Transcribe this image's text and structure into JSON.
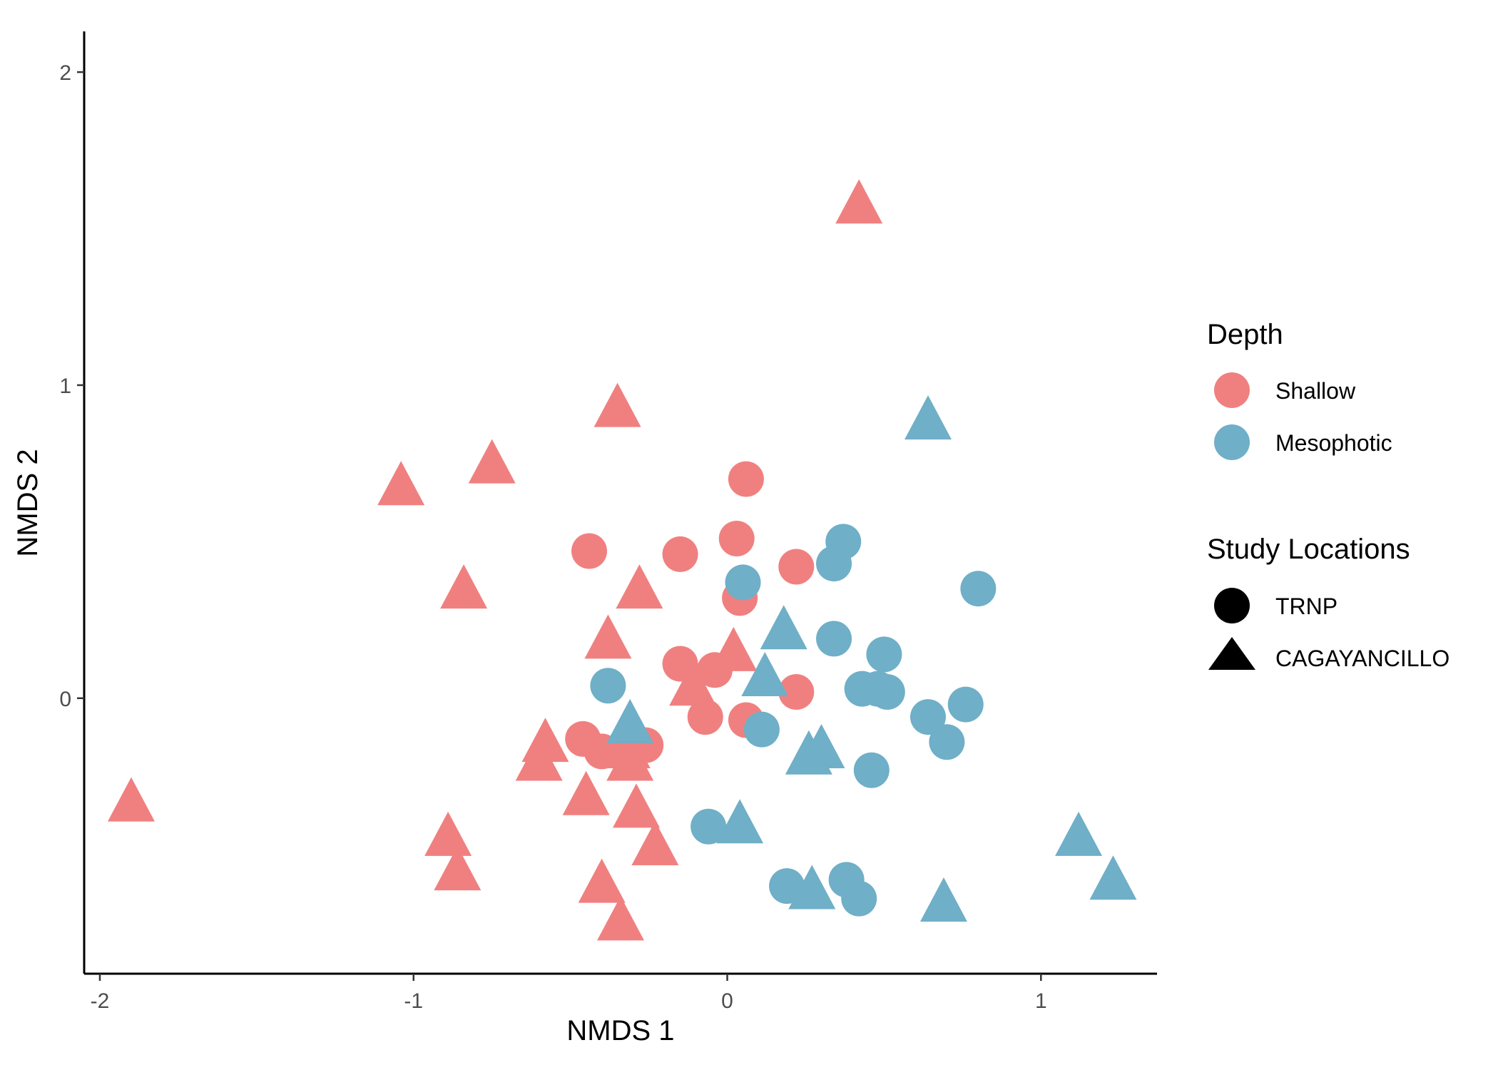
{
  "chart_data": {
    "type": "scatter",
    "title": "",
    "xlabel": "NMDS 1",
    "ylabel": "NMDS 2",
    "xlim": [
      -2.05,
      1.37
    ],
    "ylim": [
      -0.88,
      2.13
    ],
    "x_ticks": [
      -2,
      -1,
      0,
      1
    ],
    "x_tick_labels": [
      "-2",
      "-1",
      "0",
      "1"
    ],
    "y_ticks": [
      0,
      1,
      2
    ],
    "y_tick_labels": [
      "0",
      "1",
      "2"
    ],
    "grid": false,
    "legend_position": "right",
    "legends": [
      {
        "title": "Depth",
        "kind": "color",
        "entries": [
          {
            "label": "Shallow",
            "key": "Shallow",
            "color": "#F08080"
          },
          {
            "label": "Mesophotic",
            "key": "Mesophotic",
            "color": "#6FAFC7"
          }
        ]
      },
      {
        "title": "Study Locations",
        "kind": "shape",
        "entries": [
          {
            "label": "TRNP",
            "key": "TRNP",
            "shape": "circle",
            "color": "#000000"
          },
          {
            "label": "CAGAYANCILLO",
            "key": "CAGAYANCILLO",
            "shape": "triangle",
            "color": "#000000"
          }
        ]
      }
    ],
    "colors": {
      "Shallow": "#F08080",
      "Mesophotic": "#6FAFC7"
    },
    "points": [
      {
        "x": 0.42,
        "y": 1.57,
        "depth": "Shallow",
        "location": "CAGAYANCILLO"
      },
      {
        "x": -0.35,
        "y": 0.92,
        "depth": "Shallow",
        "location": "CAGAYANCILLO"
      },
      {
        "x": -0.75,
        "y": 0.74,
        "depth": "Shallow",
        "location": "CAGAYANCILLO"
      },
      {
        "x": -1.04,
        "y": 0.67,
        "depth": "Shallow",
        "location": "CAGAYANCILLO"
      },
      {
        "x": -0.84,
        "y": 0.34,
        "depth": "Shallow",
        "location": "CAGAYANCILLO"
      },
      {
        "x": -0.28,
        "y": 0.34,
        "depth": "Shallow",
        "location": "CAGAYANCILLO"
      },
      {
        "x": -0.38,
        "y": 0.18,
        "depth": "Shallow",
        "location": "CAGAYANCILLO"
      },
      {
        "x": 0.02,
        "y": 0.14,
        "depth": "Shallow",
        "location": "CAGAYANCILLO"
      },
      {
        "x": -0.11,
        "y": 0.03,
        "depth": "Shallow",
        "location": "CAGAYANCILLO"
      },
      {
        "x": -0.58,
        "y": -0.15,
        "depth": "Shallow",
        "location": "CAGAYANCILLO"
      },
      {
        "x": -0.6,
        "y": -0.21,
        "depth": "Shallow",
        "location": "CAGAYANCILLO"
      },
      {
        "x": -0.32,
        "y": -0.17,
        "depth": "Shallow",
        "location": "CAGAYANCILLO"
      },
      {
        "x": -0.31,
        "y": -0.21,
        "depth": "Shallow",
        "location": "CAGAYANCILLO"
      },
      {
        "x": -1.9,
        "y": -0.34,
        "depth": "Shallow",
        "location": "CAGAYANCILLO"
      },
      {
        "x": -0.45,
        "y": -0.32,
        "depth": "Shallow",
        "location": "CAGAYANCILLO"
      },
      {
        "x": -0.29,
        "y": -0.36,
        "depth": "Shallow",
        "location": "CAGAYANCILLO"
      },
      {
        "x": -0.89,
        "y": -0.45,
        "depth": "Shallow",
        "location": "CAGAYANCILLO"
      },
      {
        "x": -0.23,
        "y": -0.48,
        "depth": "Shallow",
        "location": "CAGAYANCILLO"
      },
      {
        "x": -0.86,
        "y": -0.56,
        "depth": "Shallow",
        "location": "CAGAYANCILLO"
      },
      {
        "x": -0.4,
        "y": -0.6,
        "depth": "Shallow",
        "location": "CAGAYANCILLO"
      },
      {
        "x": -0.34,
        "y": -0.72,
        "depth": "Shallow",
        "location": "CAGAYANCILLO"
      },
      {
        "x": 0.06,
        "y": 0.7,
        "depth": "Shallow",
        "location": "TRNP"
      },
      {
        "x": 0.03,
        "y": 0.51,
        "depth": "Shallow",
        "location": "TRNP"
      },
      {
        "x": -0.44,
        "y": 0.47,
        "depth": "Shallow",
        "location": "TRNP"
      },
      {
        "x": -0.15,
        "y": 0.46,
        "depth": "Shallow",
        "location": "TRNP"
      },
      {
        "x": 0.22,
        "y": 0.42,
        "depth": "Shallow",
        "location": "TRNP"
      },
      {
        "x": 0.04,
        "y": 0.32,
        "depth": "Shallow",
        "location": "TRNP"
      },
      {
        "x": -0.15,
        "y": 0.11,
        "depth": "Shallow",
        "location": "TRNP"
      },
      {
        "x": -0.04,
        "y": 0.09,
        "depth": "Shallow",
        "location": "TRNP"
      },
      {
        "x": 0.22,
        "y": 0.02,
        "depth": "Shallow",
        "location": "TRNP"
      },
      {
        "x": -0.07,
        "y": -0.06,
        "depth": "Shallow",
        "location": "TRNP"
      },
      {
        "x": 0.06,
        "y": -0.07,
        "depth": "Shallow",
        "location": "TRNP"
      },
      {
        "x": -0.46,
        "y": -0.13,
        "depth": "Shallow",
        "location": "TRNP"
      },
      {
        "x": -0.4,
        "y": -0.17,
        "depth": "Shallow",
        "location": "TRNP"
      },
      {
        "x": -0.26,
        "y": -0.15,
        "depth": "Shallow",
        "location": "TRNP"
      },
      {
        "x": 0.64,
        "y": 0.88,
        "depth": "Mesophotic",
        "location": "CAGAYANCILLO"
      },
      {
        "x": 0.18,
        "y": 0.21,
        "depth": "Mesophotic",
        "location": "CAGAYANCILLO"
      },
      {
        "x": 0.12,
        "y": 0.06,
        "depth": "Mesophotic",
        "location": "CAGAYANCILLO"
      },
      {
        "x": -0.31,
        "y": -0.09,
        "depth": "Mesophotic",
        "location": "CAGAYANCILLO"
      },
      {
        "x": 0.3,
        "y": -0.17,
        "depth": "Mesophotic",
        "location": "CAGAYANCILLO"
      },
      {
        "x": 0.26,
        "y": -0.19,
        "depth": "Mesophotic",
        "location": "CAGAYANCILLO"
      },
      {
        "x": 0.04,
        "y": -0.41,
        "depth": "Mesophotic",
        "location": "CAGAYANCILLO"
      },
      {
        "x": 1.12,
        "y": -0.45,
        "depth": "Mesophotic",
        "location": "CAGAYANCILLO"
      },
      {
        "x": 1.23,
        "y": -0.59,
        "depth": "Mesophotic",
        "location": "CAGAYANCILLO"
      },
      {
        "x": 0.27,
        "y": -0.62,
        "depth": "Mesophotic",
        "location": "CAGAYANCILLO"
      },
      {
        "x": 0.69,
        "y": -0.66,
        "depth": "Mesophotic",
        "location": "CAGAYANCILLO"
      },
      {
        "x": 0.37,
        "y": 0.5,
        "depth": "Mesophotic",
        "location": "TRNP"
      },
      {
        "x": 0.34,
        "y": 0.43,
        "depth": "Mesophotic",
        "location": "TRNP"
      },
      {
        "x": 0.8,
        "y": 0.35,
        "depth": "Mesophotic",
        "location": "TRNP"
      },
      {
        "x": 0.05,
        "y": 0.37,
        "depth": "Mesophotic",
        "location": "TRNP"
      },
      {
        "x": 0.34,
        "y": 0.19,
        "depth": "Mesophotic",
        "location": "TRNP"
      },
      {
        "x": 0.5,
        "y": 0.14,
        "depth": "Mesophotic",
        "location": "TRNP"
      },
      {
        "x": -0.38,
        "y": 0.04,
        "depth": "Mesophotic",
        "location": "TRNP"
      },
      {
        "x": 0.43,
        "y": 0.03,
        "depth": "Mesophotic",
        "location": "TRNP"
      },
      {
        "x": 0.48,
        "y": 0.03,
        "depth": "Mesophotic",
        "location": "TRNP"
      },
      {
        "x": 0.51,
        "y": 0.02,
        "depth": "Mesophotic",
        "location": "TRNP"
      },
      {
        "x": 0.76,
        "y": -0.02,
        "depth": "Mesophotic",
        "location": "TRNP"
      },
      {
        "x": 0.64,
        "y": -0.06,
        "depth": "Mesophotic",
        "location": "TRNP"
      },
      {
        "x": 0.11,
        "y": -0.1,
        "depth": "Mesophotic",
        "location": "TRNP"
      },
      {
        "x": 0.7,
        "y": -0.14,
        "depth": "Mesophotic",
        "location": "TRNP"
      },
      {
        "x": 0.46,
        "y": -0.23,
        "depth": "Mesophotic",
        "location": "TRNP"
      },
      {
        "x": -0.06,
        "y": -0.41,
        "depth": "Mesophotic",
        "location": "TRNP"
      },
      {
        "x": 0.19,
        "y": -0.6,
        "depth": "Mesophotic",
        "location": "TRNP"
      },
      {
        "x": 0.38,
        "y": -0.58,
        "depth": "Mesophotic",
        "location": "TRNP"
      },
      {
        "x": 0.42,
        "y": -0.64,
        "depth": "Mesophotic",
        "location": "TRNP"
      }
    ]
  }
}
